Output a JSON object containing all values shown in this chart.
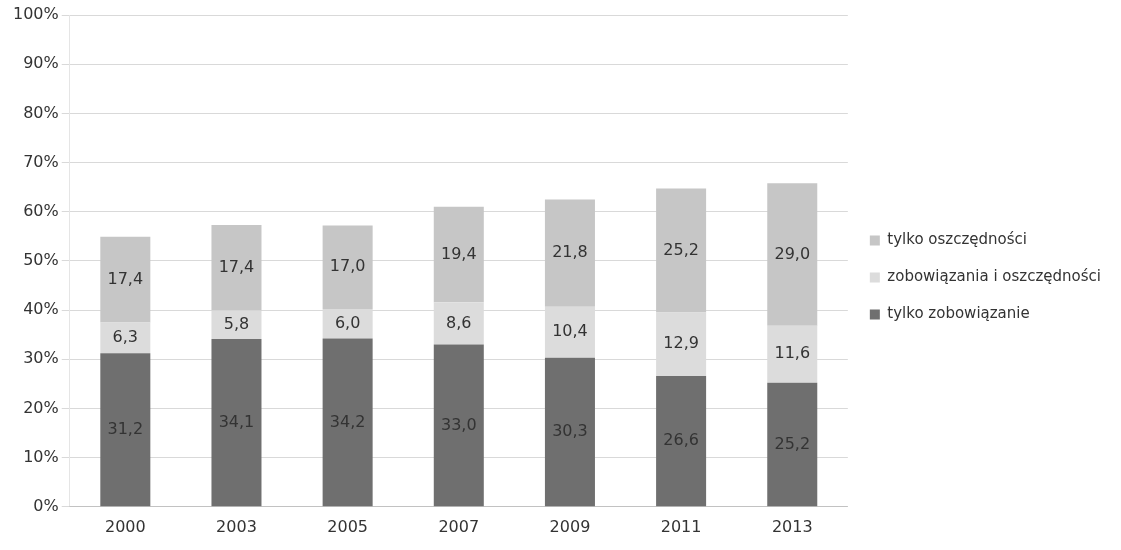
{
  "chart_data": {
    "type": "bar",
    "stacked": true,
    "categories": [
      "2000",
      "2003",
      "2005",
      "2007",
      "2009",
      "2011",
      "2013"
    ],
    "series": [
      {
        "name": "tylko zobowiązanie",
        "color": "#6f6f6f",
        "values": [
          31.2,
          34.1,
          34.2,
          33.0,
          30.3,
          26.6,
          25.2
        ],
        "value_labels": [
          "31,2",
          "34,1",
          "34,2",
          "33,0",
          "30,3",
          "26,6",
          "25,2"
        ]
      },
      {
        "name": "zobowiązania i oszczędności",
        "color": "#dcdcdc",
        "values": [
          6.3,
          5.8,
          6.0,
          8.6,
          10.4,
          12.9,
          11.6
        ],
        "value_labels": [
          "6,3",
          "5,8",
          "6,0",
          "8,6",
          "10,4",
          "12,9",
          "11,6"
        ]
      },
      {
        "name": "tylko oszczędności",
        "color": "#c6c6c6",
        "values": [
          17.4,
          17.4,
          17.0,
          19.4,
          21.8,
          25.2,
          29.0
        ],
        "value_labels": [
          "17,4",
          "17,4",
          "17,0",
          "19,4",
          "21,8",
          "25,2",
          "29,0"
        ]
      }
    ],
    "ylim": [
      0,
      100
    ],
    "yticks": [
      {
        "value": 0,
        "label": "0%"
      },
      {
        "value": 10,
        "label": "10%"
      },
      {
        "value": 20,
        "label": "20%"
      },
      {
        "value": 30,
        "label": "30%"
      },
      {
        "value": 40,
        "label": "40%"
      },
      {
        "value": 50,
        "label": "50%"
      },
      {
        "value": 60,
        "label": "60%"
      },
      {
        "value": 70,
        "label": "70%"
      },
      {
        "value": 80,
        "label": "80%"
      },
      {
        "value": 90,
        "label": "90%"
      },
      {
        "value": 100,
        "label": "100%"
      }
    ],
    "grid": "y",
    "legend": "right"
  }
}
